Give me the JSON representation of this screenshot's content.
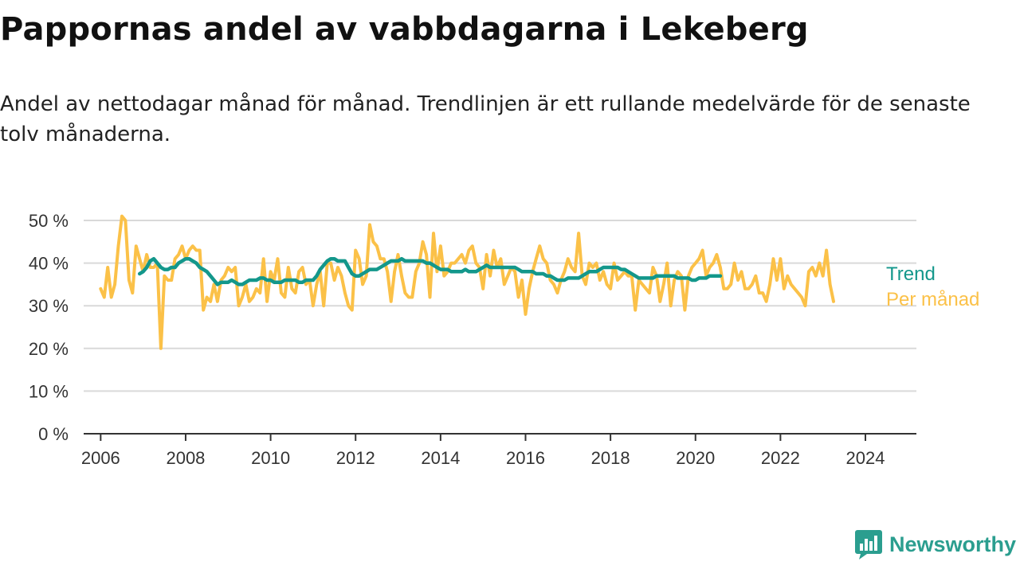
{
  "title": "Pappornas andel av vabbdagarna i Lekeberg",
  "subtitle": "Andel av nettodagar månad för månad. Trendlinjen är ett rullande medelvärde för de senaste tolv månaderna.",
  "brand": "Newsworthy",
  "colors": {
    "monthly": "#fbc148",
    "trend": "#13978b",
    "grid": "#d9d9d9",
    "axis": "#333333",
    "brand": "#2b9e8f"
  },
  "chart_data": {
    "type": "line",
    "x_axis": {
      "min": 2005.6,
      "max": 2025.2,
      "ticks": [
        2006,
        2008,
        2010,
        2012,
        2014,
        2016,
        2018,
        2020,
        2022,
        2024
      ]
    },
    "y_axis": {
      "min": 0,
      "max": 52,
      "ticks": [
        0,
        10,
        20,
        30,
        40,
        50
      ],
      "tick_labels": [
        "0 %",
        "10 %",
        "20 %",
        "30 %",
        "40 %",
        "50 %"
      ]
    },
    "grid": "horizontal",
    "series": [
      {
        "name": "Per månad",
        "start": [
          2006,
          1
        ],
        "values": [
          34,
          32,
          39,
          32,
          35,
          44,
          51,
          50,
          36,
          33,
          44,
          41,
          38,
          42,
          39,
          39,
          40,
          20,
          37,
          36,
          36,
          41,
          42,
          44,
          41,
          43,
          44,
          43,
          43,
          29,
          32,
          31,
          35,
          31,
          36,
          37,
          39,
          38,
          39,
          30,
          32,
          35,
          31,
          32,
          34,
          33,
          41,
          31,
          38,
          36,
          41,
          33,
          32,
          39,
          34,
          33,
          38,
          39,
          35,
          36,
          30,
          35,
          38,
          30,
          40,
          40,
          36,
          39,
          37,
          33,
          30,
          29,
          43,
          41,
          35,
          37,
          49,
          45,
          44,
          41,
          41,
          38,
          31,
          38,
          42,
          37,
          33,
          32,
          32,
          38,
          40,
          45,
          42,
          32,
          47,
          38,
          44,
          37,
          38,
          40,
          40,
          41,
          42,
          40,
          43,
          44,
          40,
          39,
          34,
          42,
          37,
          43,
          39,
          41,
          35,
          37,
          39,
          38,
          32,
          36,
          28,
          34,
          38,
          41,
          44,
          41,
          40,
          36,
          35,
          33,
          36,
          38,
          41,
          39,
          38,
          47,
          37,
          35,
          40,
          39,
          40,
          36,
          38,
          35,
          34,
          40,
          36,
          37,
          38,
          37,
          37,
          29,
          36,
          35,
          34,
          33,
          39,
          37,
          31,
          35,
          40,
          30,
          36,
          38,
          37,
          29,
          37,
          39,
          40,
          41,
          43,
          37,
          39,
          40,
          42,
          39,
          34,
          34,
          35,
          40,
          36,
          38,
          34,
          34,
          35,
          37,
          33,
          33,
          31,
          35,
          41,
          36,
          41,
          34,
          37,
          35,
          34,
          33,
          32,
          30,
          38,
          39,
          37,
          40,
          37,
          43,
          35,
          31
        ]
      },
      {
        "name": "Trend",
        "start": [
          2006,
          12
        ],
        "values": [
          37.5,
          38,
          39,
          40.5,
          41,
          40,
          39,
          38.5,
          38.5,
          39,
          39,
          40,
          40.5,
          41,
          41,
          40.5,
          40,
          39,
          38.5,
          38,
          37,
          36,
          35,
          35.5,
          35.5,
          35.5,
          36,
          35.5,
          35,
          35,
          35.5,
          36,
          36,
          36,
          36.5,
          36.5,
          36,
          36,
          35.5,
          35.5,
          35.5,
          36,
          36,
          36,
          36,
          35.5,
          35.5,
          36,
          36,
          36,
          37,
          38.5,
          39.5,
          40.5,
          41,
          41,
          40.5,
          40.5,
          40.5,
          39,
          37.5,
          37,
          37,
          37.5,
          38,
          38.5,
          38.5,
          38.5,
          39,
          39.5,
          40,
          40.5,
          40.5,
          40.5,
          41,
          40.5,
          40.5,
          40.5,
          40.5,
          40.5,
          40.5,
          40,
          40,
          39.5,
          39,
          38.5,
          38.5,
          38.5,
          38,
          38,
          38,
          38,
          38.5,
          38,
          38,
          38,
          38.5,
          39,
          39.5,
          39,
          39,
          39,
          39,
          39,
          39,
          39,
          39,
          38.5,
          38,
          38,
          38,
          38,
          37.5,
          37.5,
          37.5,
          37,
          37,
          36.5,
          36,
          36,
          36,
          36.5,
          36.5,
          36.5,
          36.5,
          37,
          37.5,
          38,
          38,
          38,
          38.5,
          39,
          39,
          39,
          39,
          39,
          38.5,
          38.5,
          38,
          37.5,
          37,
          36.5,
          36.5,
          36.5,
          36.5,
          36.5,
          37,
          37,
          37,
          37,
          37,
          37,
          36.5,
          36.5,
          36.5,
          36.5,
          36,
          36,
          36.5,
          36.5,
          36.5,
          37,
          37,
          37,
          37
        ]
      }
    ],
    "end_labels": [
      "Trend",
      "Per månad"
    ]
  }
}
